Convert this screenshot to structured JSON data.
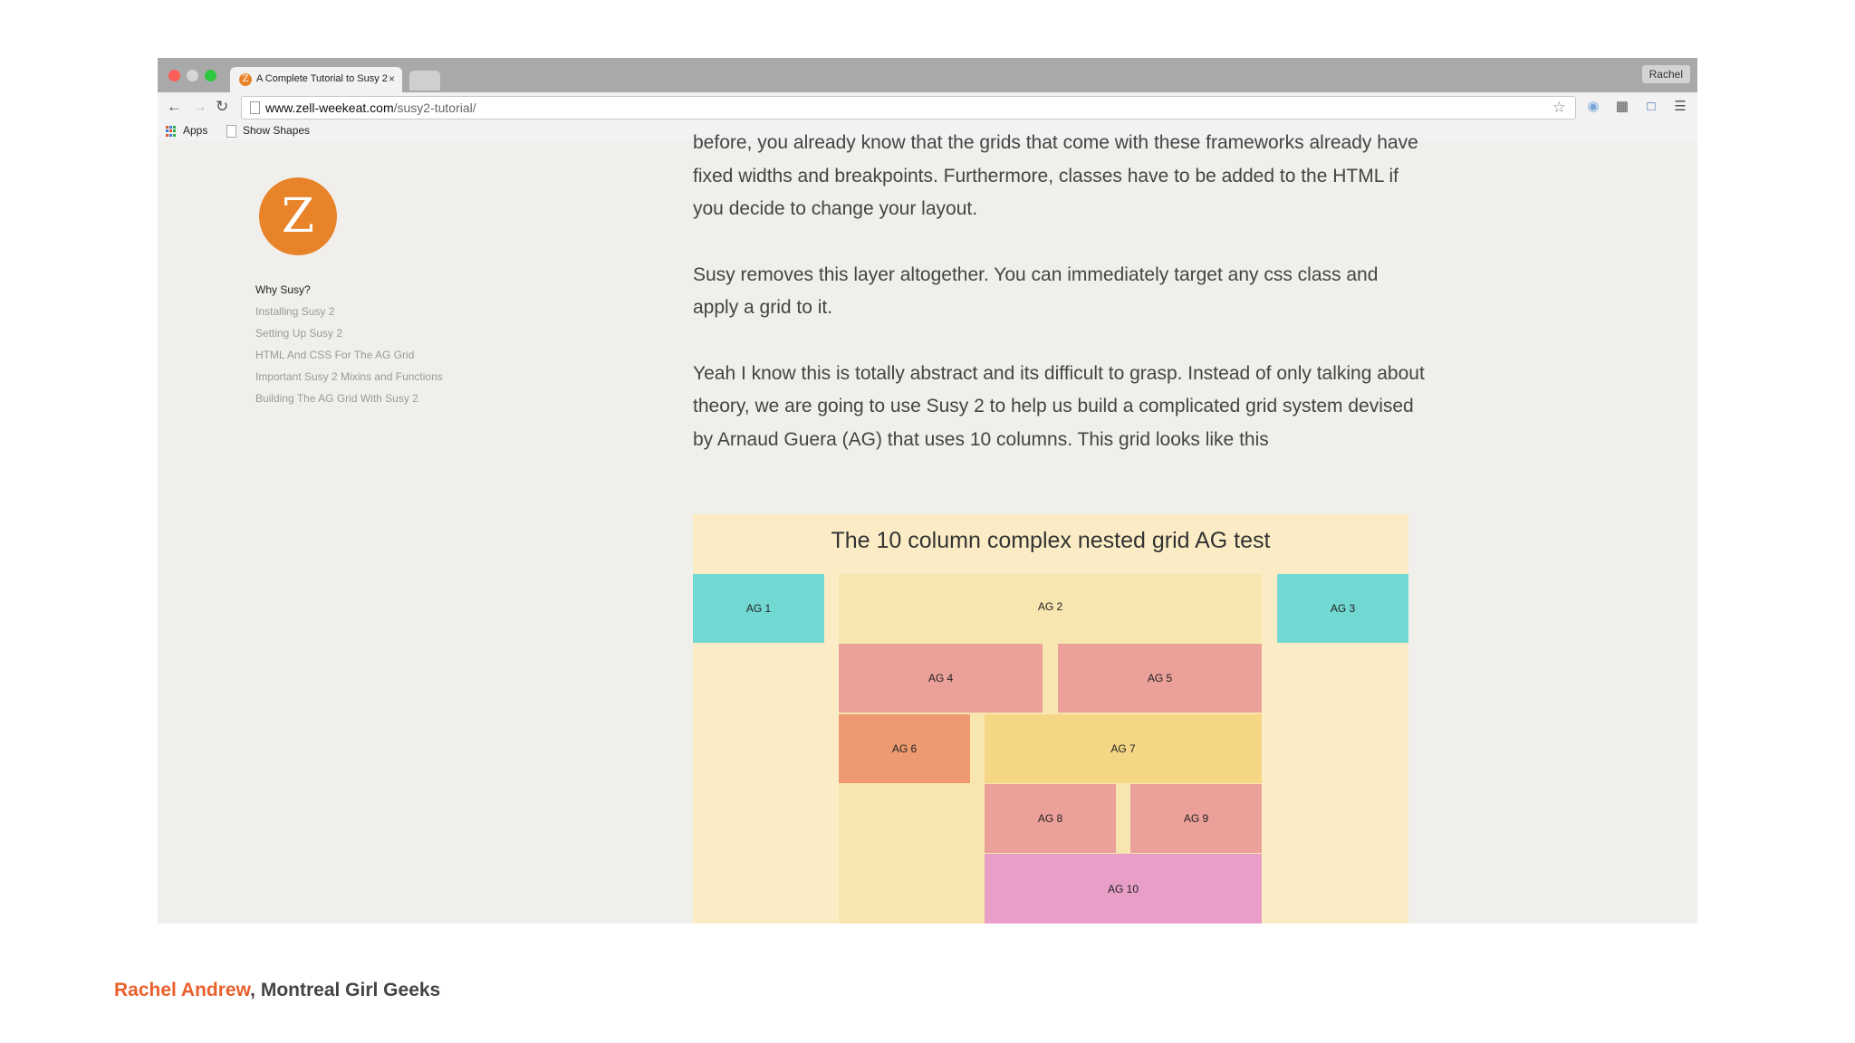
{
  "browser": {
    "tab_title": "A Complete Tutorial to Susy 2",
    "tab_favicon_letter": "Z",
    "close_glyph": "×",
    "profile_name": "Rachel",
    "url_domain": "www.zell-weekeat.com",
    "url_path": "/susy2-tutorial/",
    "nav": {
      "back": "←",
      "forward": "→",
      "reload": "↻"
    },
    "star_glyph": "☆",
    "bookmarks": {
      "apps": "Apps",
      "show_shapes": "Show Shapes"
    }
  },
  "sidebar": {
    "avatar_letter": "Z",
    "toc": [
      {
        "label": "Why Susy?",
        "active": true
      },
      {
        "label": "Installing Susy 2",
        "active": false
      },
      {
        "label": "Setting Up Susy 2",
        "active": false
      },
      {
        "label": "HTML And CSS For The AG Grid",
        "active": false
      },
      {
        "label": "Important Susy 2 Mixins and Functions",
        "active": false
      },
      {
        "label": "Building The AG Grid With Susy 2",
        "active": false
      }
    ]
  },
  "article": {
    "paragraphs": [
      "before, you already know that the grids that come with these frameworks already have fixed widths and breakpoints. Furthermore, classes have to be added to the HTML if you decide to change your layout.",
      "Susy removes this layer altogether. You can immediately target any css class and apply a grid to it.",
      "Yeah I know this is totally abstract and its difficult to grasp. Instead of only talking about theory, we are going to use Susy 2 to help us build a complicated grid system devised by Arnaud Guera (AG) that uses 10 columns. This grid looks like this"
    ]
  },
  "figure": {
    "title": "The 10 column complex nested grid AG test",
    "boxes": [
      {
        "label": "AG 1",
        "color": "#72d8d2"
      },
      {
        "label": "AG 2",
        "color": "#f7e6b0"
      },
      {
        "label": "AG 3",
        "color": "#72d8d2"
      },
      {
        "label": "AG 4",
        "color": "#eca09a"
      },
      {
        "label": "AG 5",
        "color": "#eca09a"
      },
      {
        "label": "AG 6",
        "color": "#ee9a70"
      },
      {
        "label": "AG 7",
        "color": "#f5d685"
      },
      {
        "label": "AG 8",
        "color": "#eca09a"
      },
      {
        "label": "AG 9",
        "color": "#eca09a"
      },
      {
        "label": "AG 10",
        "color": "#e89ec7"
      }
    ]
  },
  "footer": {
    "author": "Rachel Andrew",
    "separator": ", ",
    "event": "Montreal Girl Geeks",
    "author_color": "#e8602c"
  }
}
